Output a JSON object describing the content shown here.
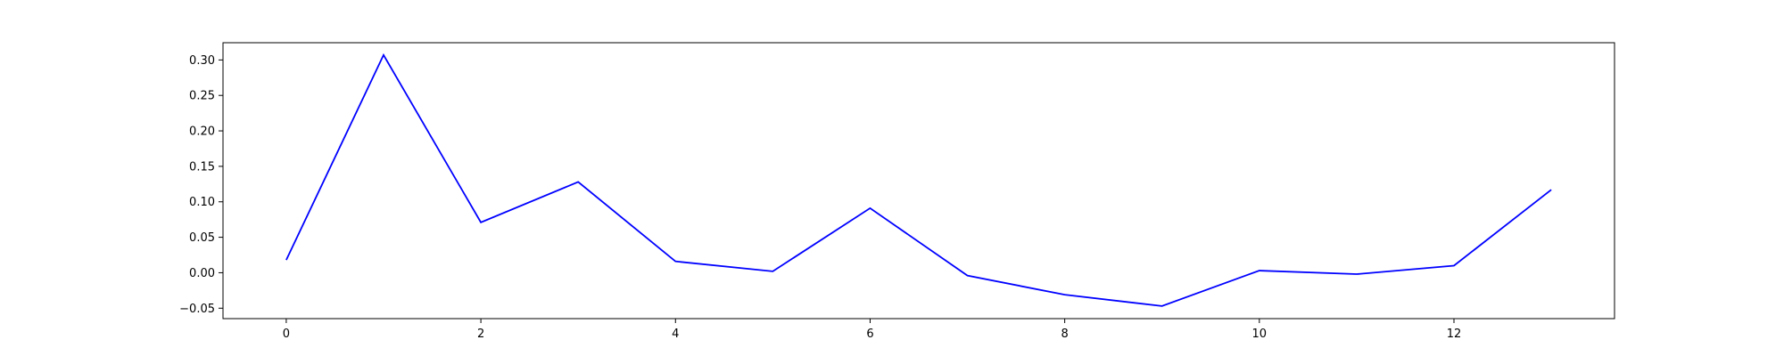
{
  "chart_data": {
    "type": "line",
    "title": "",
    "xlabel": "",
    "ylabel": "",
    "x": [
      0,
      1,
      2,
      3,
      4,
      5,
      6,
      7,
      8,
      9,
      10,
      11,
      12,
      13
    ],
    "series": [
      {
        "values": [
          0.018,
          0.307,
          0.071,
          0.128,
          0.016,
          0.002,
          0.091,
          -0.004,
          -0.031,
          -0.047,
          0.003,
          -0.002,
          0.01,
          0.117
        ],
        "color": "#0000ff"
      }
    ],
    "xlim": [
      -0.65,
      13.65
    ],
    "ylim": [
      -0.0647,
      0.3243
    ],
    "x_ticks": [
      0,
      2,
      4,
      6,
      8,
      10,
      12
    ],
    "x_tick_labels": [
      "0",
      "2",
      "4",
      "6",
      "8",
      "10",
      "12"
    ],
    "y_ticks": [
      -0.05,
      0.0,
      0.05,
      0.1,
      0.15,
      0.2,
      0.25,
      0.3
    ],
    "y_tick_labels": [
      "−0.05",
      "0.00",
      "0.05",
      "0.10",
      "0.15",
      "0.20",
      "0.25",
      "0.30"
    ],
    "grid": false,
    "legend": "none"
  }
}
